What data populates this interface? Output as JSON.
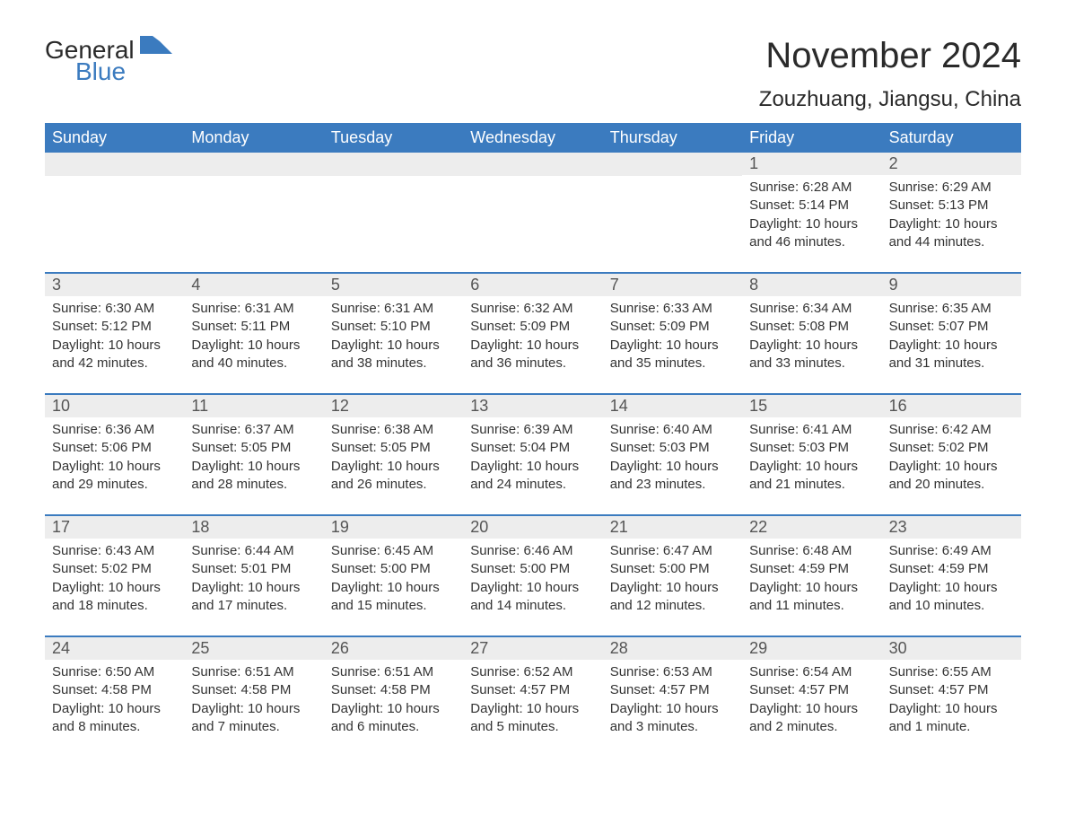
{
  "logo": {
    "text_general": "General",
    "text_blue": "Blue"
  },
  "header": {
    "month_title": "November 2024",
    "location": "Zouzhuang, Jiangsu, China"
  },
  "colors": {
    "header_bg": "#3b7bbf",
    "header_text": "#ffffff",
    "daybar_bg": "#ededed",
    "border": "#3b7bbf",
    "text": "#333333",
    "page_bg": "#ffffff"
  },
  "weekdays": [
    "Sunday",
    "Monday",
    "Tuesday",
    "Wednesday",
    "Thursday",
    "Friday",
    "Saturday"
  ],
  "weeks": [
    [
      {
        "empty": true
      },
      {
        "empty": true
      },
      {
        "empty": true
      },
      {
        "empty": true
      },
      {
        "empty": true
      },
      {
        "day": "1",
        "sunrise": "Sunrise: 6:28 AM",
        "sunset": "Sunset: 5:14 PM",
        "daylight": "Daylight: 10 hours and 46 minutes."
      },
      {
        "day": "2",
        "sunrise": "Sunrise: 6:29 AM",
        "sunset": "Sunset: 5:13 PM",
        "daylight": "Daylight: 10 hours and 44 minutes."
      }
    ],
    [
      {
        "day": "3",
        "sunrise": "Sunrise: 6:30 AM",
        "sunset": "Sunset: 5:12 PM",
        "daylight": "Daylight: 10 hours and 42 minutes."
      },
      {
        "day": "4",
        "sunrise": "Sunrise: 6:31 AM",
        "sunset": "Sunset: 5:11 PM",
        "daylight": "Daylight: 10 hours and 40 minutes."
      },
      {
        "day": "5",
        "sunrise": "Sunrise: 6:31 AM",
        "sunset": "Sunset: 5:10 PM",
        "daylight": "Daylight: 10 hours and 38 minutes."
      },
      {
        "day": "6",
        "sunrise": "Sunrise: 6:32 AM",
        "sunset": "Sunset: 5:09 PM",
        "daylight": "Daylight: 10 hours and 36 minutes."
      },
      {
        "day": "7",
        "sunrise": "Sunrise: 6:33 AM",
        "sunset": "Sunset: 5:09 PM",
        "daylight": "Daylight: 10 hours and 35 minutes."
      },
      {
        "day": "8",
        "sunrise": "Sunrise: 6:34 AM",
        "sunset": "Sunset: 5:08 PM",
        "daylight": "Daylight: 10 hours and 33 minutes."
      },
      {
        "day": "9",
        "sunrise": "Sunrise: 6:35 AM",
        "sunset": "Sunset: 5:07 PM",
        "daylight": "Daylight: 10 hours and 31 minutes."
      }
    ],
    [
      {
        "day": "10",
        "sunrise": "Sunrise: 6:36 AM",
        "sunset": "Sunset: 5:06 PM",
        "daylight": "Daylight: 10 hours and 29 minutes."
      },
      {
        "day": "11",
        "sunrise": "Sunrise: 6:37 AM",
        "sunset": "Sunset: 5:05 PM",
        "daylight": "Daylight: 10 hours and 28 minutes."
      },
      {
        "day": "12",
        "sunrise": "Sunrise: 6:38 AM",
        "sunset": "Sunset: 5:05 PM",
        "daylight": "Daylight: 10 hours and 26 minutes."
      },
      {
        "day": "13",
        "sunrise": "Sunrise: 6:39 AM",
        "sunset": "Sunset: 5:04 PM",
        "daylight": "Daylight: 10 hours and 24 minutes."
      },
      {
        "day": "14",
        "sunrise": "Sunrise: 6:40 AM",
        "sunset": "Sunset: 5:03 PM",
        "daylight": "Daylight: 10 hours and 23 minutes."
      },
      {
        "day": "15",
        "sunrise": "Sunrise: 6:41 AM",
        "sunset": "Sunset: 5:03 PM",
        "daylight": "Daylight: 10 hours and 21 minutes."
      },
      {
        "day": "16",
        "sunrise": "Sunrise: 6:42 AM",
        "sunset": "Sunset: 5:02 PM",
        "daylight": "Daylight: 10 hours and 20 minutes."
      }
    ],
    [
      {
        "day": "17",
        "sunrise": "Sunrise: 6:43 AM",
        "sunset": "Sunset: 5:02 PM",
        "daylight": "Daylight: 10 hours and 18 minutes."
      },
      {
        "day": "18",
        "sunrise": "Sunrise: 6:44 AM",
        "sunset": "Sunset: 5:01 PM",
        "daylight": "Daylight: 10 hours and 17 minutes."
      },
      {
        "day": "19",
        "sunrise": "Sunrise: 6:45 AM",
        "sunset": "Sunset: 5:00 PM",
        "daylight": "Daylight: 10 hours and 15 minutes."
      },
      {
        "day": "20",
        "sunrise": "Sunrise: 6:46 AM",
        "sunset": "Sunset: 5:00 PM",
        "daylight": "Daylight: 10 hours and 14 minutes."
      },
      {
        "day": "21",
        "sunrise": "Sunrise: 6:47 AM",
        "sunset": "Sunset: 5:00 PM",
        "daylight": "Daylight: 10 hours and 12 minutes."
      },
      {
        "day": "22",
        "sunrise": "Sunrise: 6:48 AM",
        "sunset": "Sunset: 4:59 PM",
        "daylight": "Daylight: 10 hours and 11 minutes."
      },
      {
        "day": "23",
        "sunrise": "Sunrise: 6:49 AM",
        "sunset": "Sunset: 4:59 PM",
        "daylight": "Daylight: 10 hours and 10 minutes."
      }
    ],
    [
      {
        "day": "24",
        "sunrise": "Sunrise: 6:50 AM",
        "sunset": "Sunset: 4:58 PM",
        "daylight": "Daylight: 10 hours and 8 minutes."
      },
      {
        "day": "25",
        "sunrise": "Sunrise: 6:51 AM",
        "sunset": "Sunset: 4:58 PM",
        "daylight": "Daylight: 10 hours and 7 minutes."
      },
      {
        "day": "26",
        "sunrise": "Sunrise: 6:51 AM",
        "sunset": "Sunset: 4:58 PM",
        "daylight": "Daylight: 10 hours and 6 minutes."
      },
      {
        "day": "27",
        "sunrise": "Sunrise: 6:52 AM",
        "sunset": "Sunset: 4:57 PM",
        "daylight": "Daylight: 10 hours and 5 minutes."
      },
      {
        "day": "28",
        "sunrise": "Sunrise: 6:53 AM",
        "sunset": "Sunset: 4:57 PM",
        "daylight": "Daylight: 10 hours and 3 minutes."
      },
      {
        "day": "29",
        "sunrise": "Sunrise: 6:54 AM",
        "sunset": "Sunset: 4:57 PM",
        "daylight": "Daylight: 10 hours and 2 minutes."
      },
      {
        "day": "30",
        "sunrise": "Sunrise: 6:55 AM",
        "sunset": "Sunset: 4:57 PM",
        "daylight": "Daylight: 10 hours and 1 minute."
      }
    ]
  ]
}
